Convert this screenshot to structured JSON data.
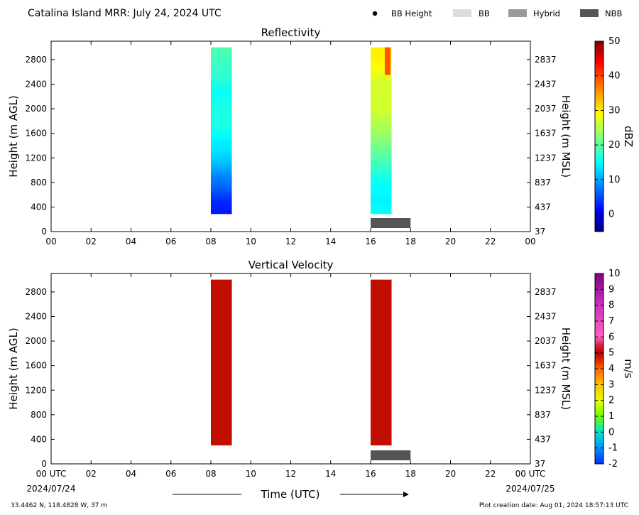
{
  "header": {
    "title": "Catalina Island MRR:  July 24, 2024 UTC",
    "legend": [
      {
        "label": "BB Height",
        "kind": "dot",
        "color": "#000000"
      },
      {
        "label": "BB",
        "kind": "box",
        "color": "#dcdcdc"
      },
      {
        "label": "Hybrid",
        "kind": "box",
        "color": "#9a9a9a"
      },
      {
        "label": "NBB",
        "kind": "box",
        "color": "#555555"
      }
    ]
  },
  "footer": {
    "coords": "33.4462 N, 118.4828 W, 37 m",
    "creation": "Plot creation date: Aug 01, 2024 18:57:13 UTC",
    "date_start": "2024/07/24",
    "date_end": "2024/07/25",
    "xlabel": "Time (UTC)"
  },
  "chart_data": [
    {
      "type": "heatmap",
      "title": "Reflectivity",
      "ylabel": "Height (m AGL)",
      "y2label": "Height (m MSL)",
      "xlim": [
        0,
        24
      ],
      "ylim": [
        0,
        3100
      ],
      "x_ticks": [
        "00",
        "02",
        "04",
        "06",
        "08",
        "10",
        "12",
        "14",
        "16",
        "18",
        "20",
        "22",
        "00"
      ],
      "y_ticks": [
        0,
        400,
        800,
        1200,
        1600,
        2000,
        2400,
        2800
      ],
      "y2_ticks": [
        37,
        437,
        837,
        1237,
        1637,
        2037,
        2437,
        2837
      ],
      "colorbar": {
        "label": "dBZ",
        "min": -5,
        "max": 50,
        "ticks": [
          0,
          10,
          20,
          30,
          40,
          50
        ]
      },
      "data_blocks": [
        {
          "x_start": 8.0,
          "x_end": 9.05,
          "y_start": 290,
          "y_end": 3000,
          "profile": [
            [
              290,
              3
            ],
            [
              500,
              4
            ],
            [
              700,
              7
            ],
            [
              900,
              9
            ],
            [
              1100,
              12
            ],
            [
              1300,
              14
            ],
            [
              1500,
              15
            ],
            [
              1700,
              17
            ],
            [
              2000,
              17
            ],
            [
              2300,
              16
            ],
            [
              2500,
              18
            ],
            [
              2800,
              19
            ],
            [
              3000,
              20
            ]
          ]
        },
        {
          "x_start": 16.0,
          "x_end": 17.05,
          "y_start": 290,
          "y_end": 3000,
          "profile": [
            [
              290,
              16
            ],
            [
              500,
              15
            ],
            [
              800,
              16
            ],
            [
              1000,
              18
            ],
            [
              1300,
              21
            ],
            [
              1600,
              24
            ],
            [
              2000,
              27
            ],
            [
              2400,
              27
            ],
            [
              2800,
              30
            ],
            [
              3000,
              30
            ]
          ],
          "hotspot": {
            "x": 16.85,
            "y_start": 2550,
            "y_end": 3000,
            "value": 40
          }
        }
      ],
      "bb_type_bars": [
        {
          "x_start": 16.0,
          "x_end": 18.0,
          "type": "NBB"
        }
      ]
    },
    {
      "type": "heatmap",
      "title": "Vertical Velocity",
      "ylabel": "Height (m AGL)",
      "y2label": "Height (m MSL)",
      "xlim": [
        0,
        24
      ],
      "ylim": [
        0,
        3100
      ],
      "x_ticks": [
        "00 UTC",
        "02",
        "04",
        "06",
        "08",
        "10",
        "12",
        "14",
        "16",
        "18",
        "20",
        "22",
        "00 UTC"
      ],
      "y_ticks": [
        0,
        400,
        800,
        1200,
        1600,
        2000,
        2400,
        2800
      ],
      "y2_ticks": [
        37,
        437,
        837,
        1237,
        1637,
        2037,
        2437,
        2837
      ],
      "colorbar": {
        "label": "m/s",
        "min": -2,
        "max": 10,
        "ticks": [
          -2,
          -1,
          0,
          1,
          2,
          3,
          4,
          5,
          6,
          7,
          8,
          9,
          10
        ]
      },
      "data_blocks": [
        {
          "x_start": 8.0,
          "x_end": 9.05,
          "y_start": 300,
          "y_end": 3000,
          "value": 6
        },
        {
          "x_start": 16.0,
          "x_end": 17.05,
          "y_start": 300,
          "y_end": 3000,
          "value": 6
        }
      ],
      "bb_type_bars": [
        {
          "x_start": 16.0,
          "x_end": 18.0,
          "type": "NBB"
        }
      ]
    }
  ]
}
